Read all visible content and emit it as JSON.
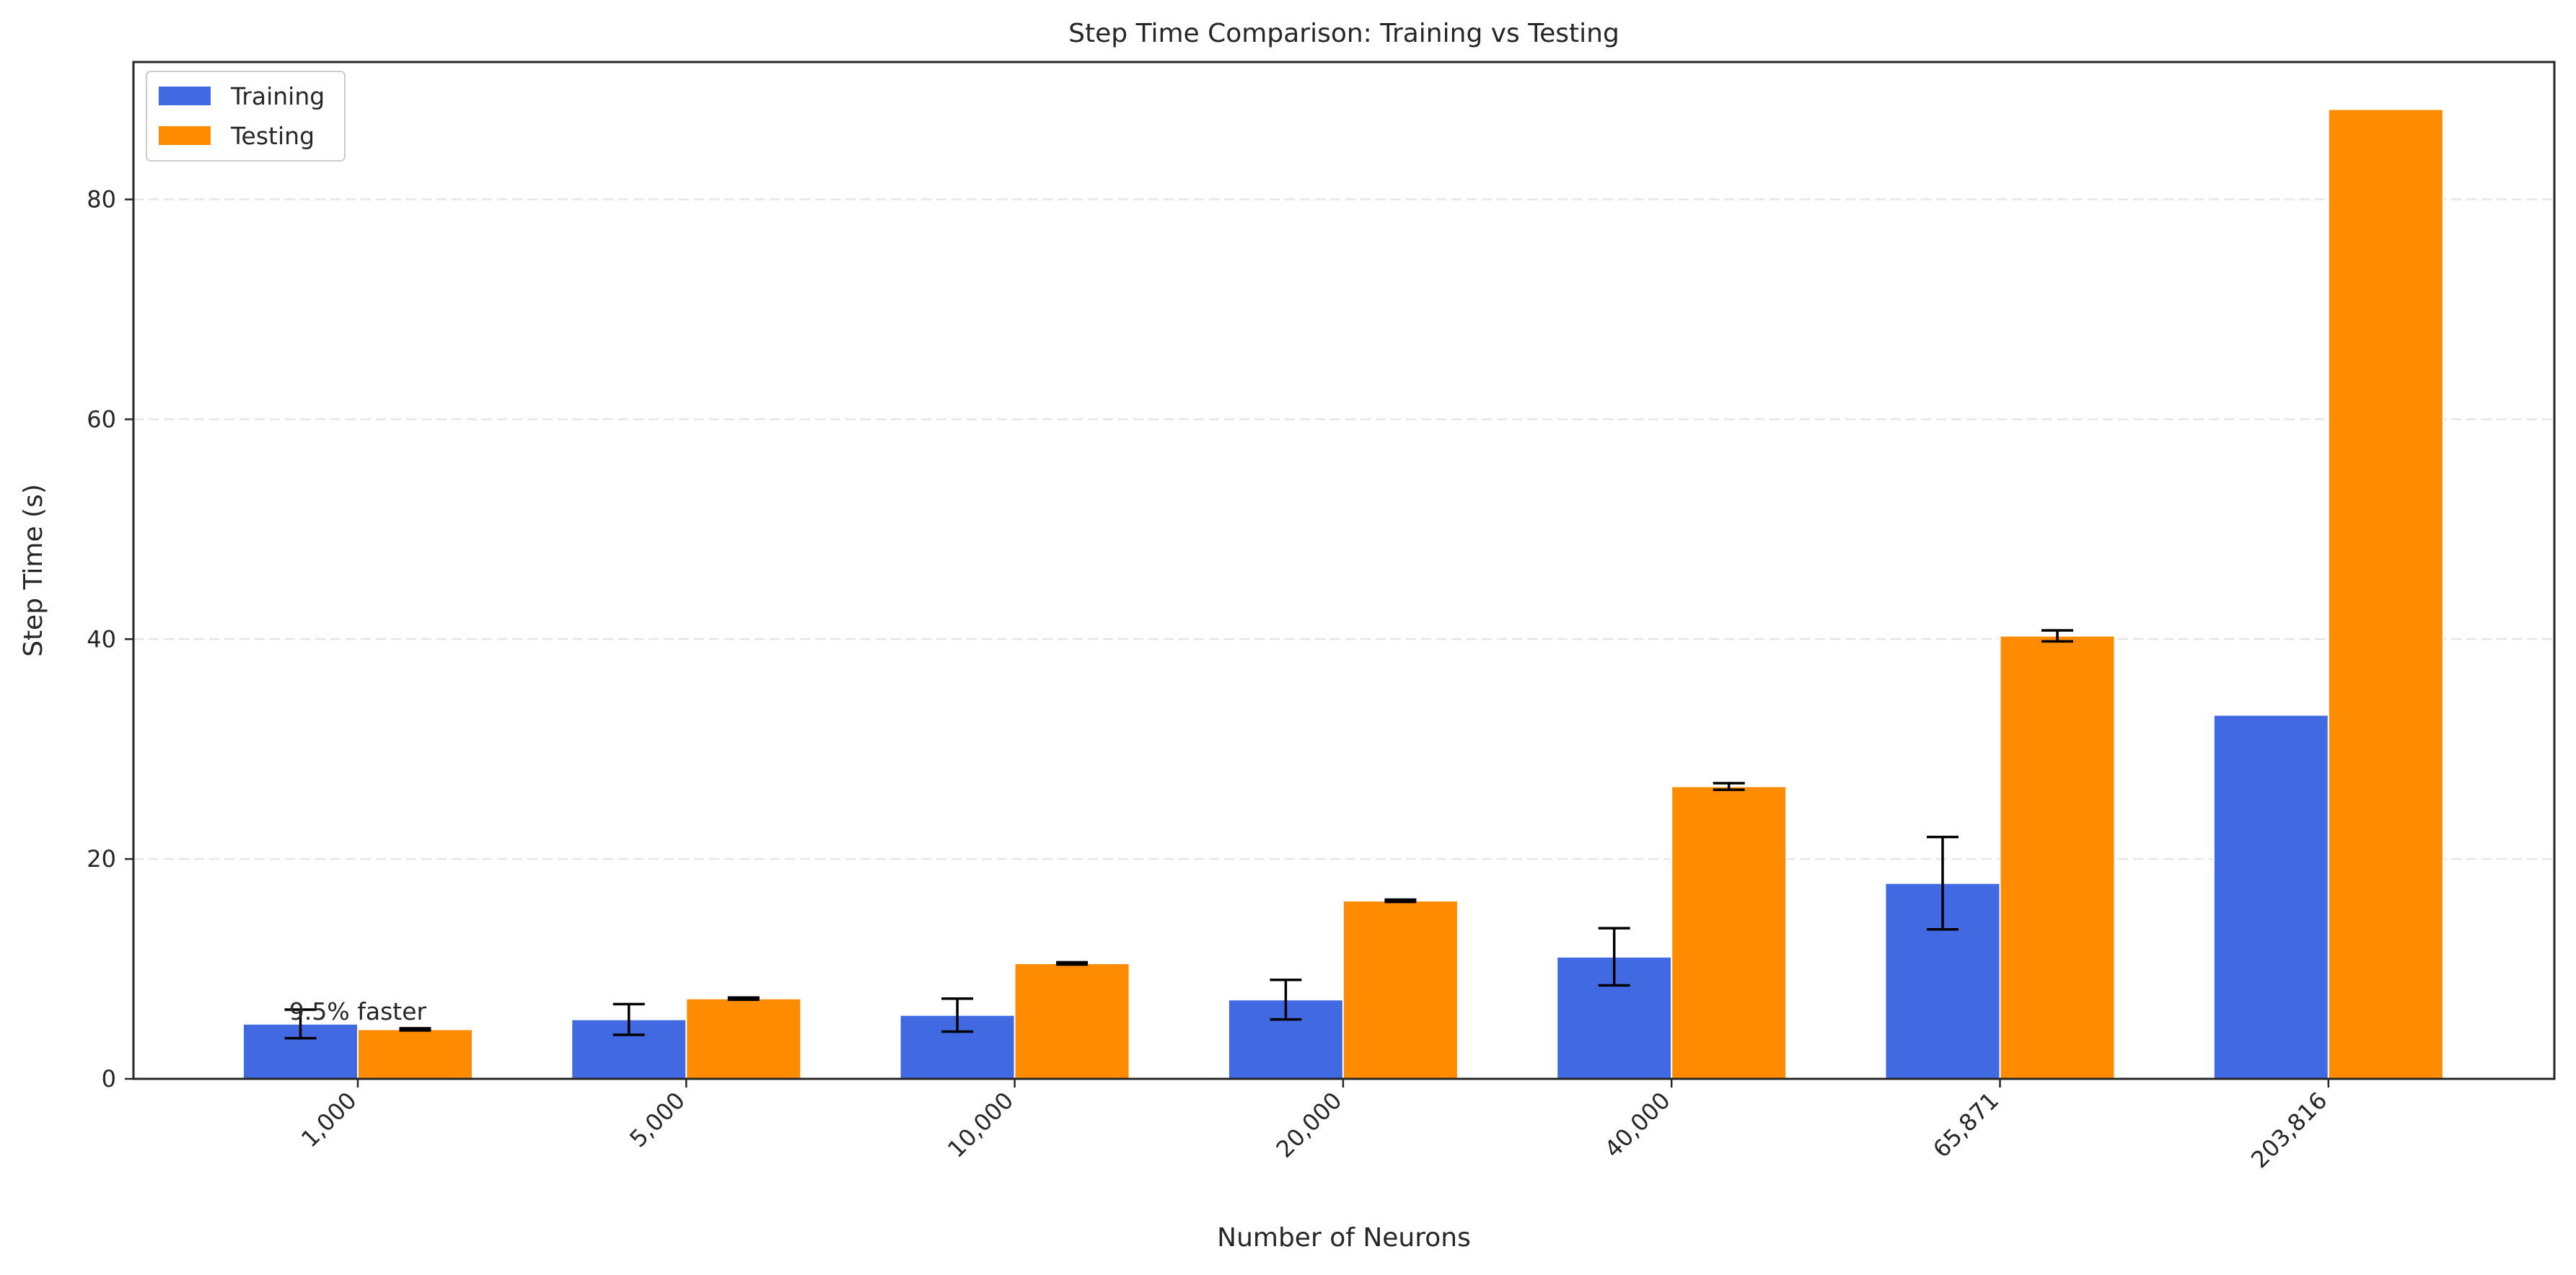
{
  "chart_data": {
    "type": "bar",
    "title": "Step Time Comparison: Training vs Testing",
    "xlabel": "Number of Neurons",
    "ylabel": "Step Time (s)",
    "categories": [
      "1,000",
      "5,000",
      "10,000",
      "20,000",
      "40,000",
      "65,871",
      "203,816"
    ],
    "ylim": [
      0,
      92.5
    ],
    "yticks": [
      0,
      20,
      40,
      60,
      80
    ],
    "grid": "horizontal dashed",
    "legend_position": "top-left",
    "series": [
      {
        "name": "Training",
        "color": "#4169E1",
        "values": [
          5.0,
          5.4,
          5.8,
          7.2,
          11.1,
          17.8,
          33.1
        ],
        "errors": [
          1.3,
          1.4,
          1.5,
          1.8,
          2.6,
          4.2,
          0
        ]
      },
      {
        "name": "Testing",
        "color": "#FF8C00",
        "values": [
          4.5,
          7.3,
          10.5,
          16.2,
          26.6,
          40.3,
          88.2
        ],
        "errors": [
          0.1,
          0.1,
          0.1,
          0.1,
          0.3,
          0.5,
          0
        ]
      }
    ],
    "annotations": [
      {
        "text": "9.5% faster",
        "category": "1,000"
      }
    ]
  }
}
